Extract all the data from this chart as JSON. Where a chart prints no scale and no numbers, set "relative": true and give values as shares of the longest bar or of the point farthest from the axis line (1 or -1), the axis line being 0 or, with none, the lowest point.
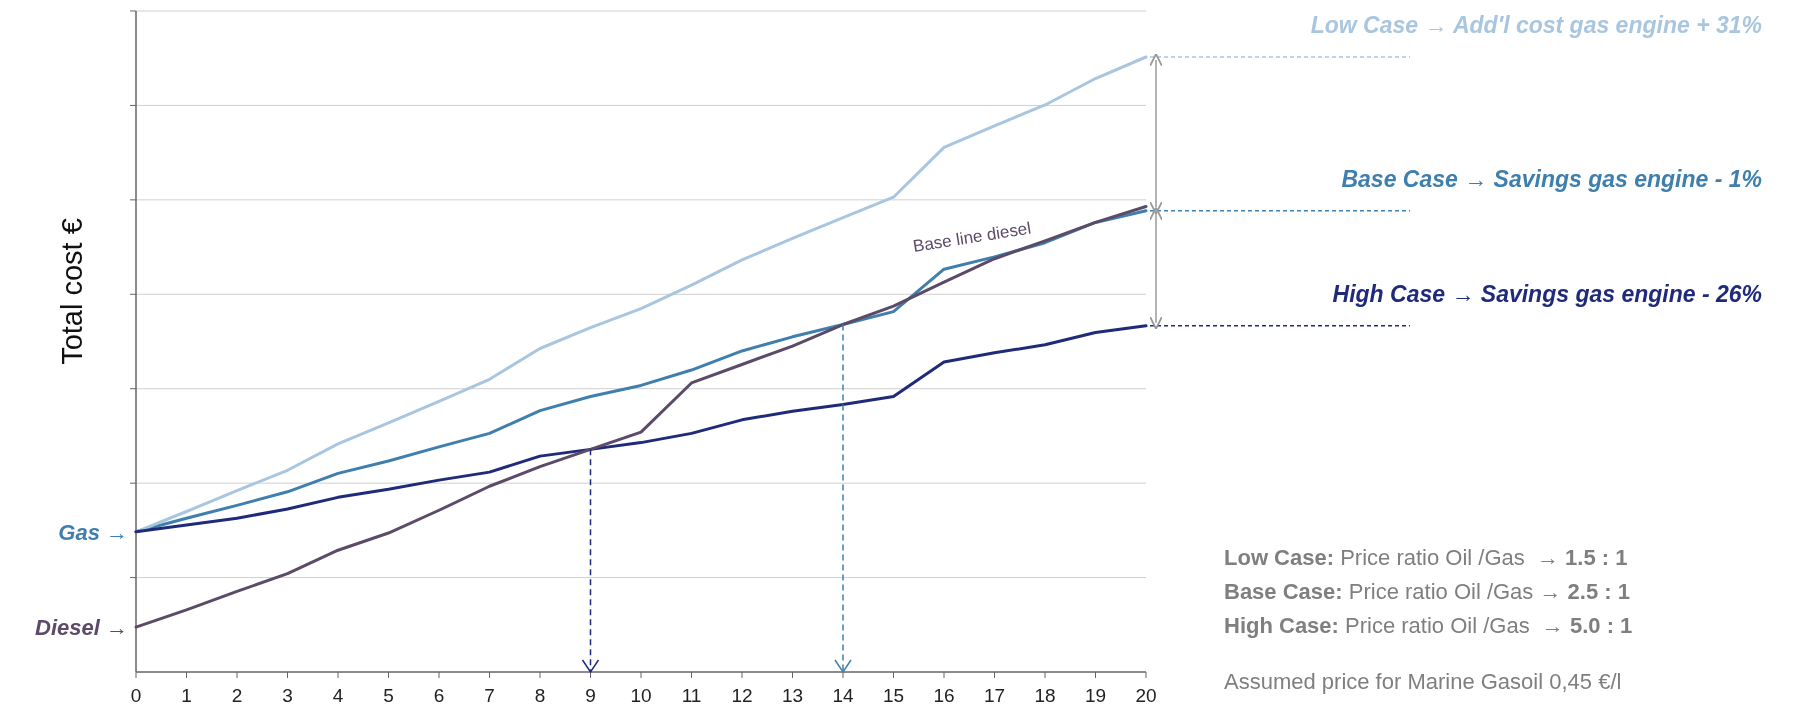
{
  "chart_data": {
    "type": "line",
    "relative": true,
    "ylabel": "Total cost €",
    "xlim": [
      0,
      20
    ],
    "xticks": [
      0,
      1,
      2,
      3,
      4,
      5,
      6,
      7,
      8,
      9,
      10,
      11,
      12,
      13,
      14,
      15,
      16,
      17,
      18,
      19,
      20
    ],
    "grid": "y",
    "line_style": "solid",
    "x": [
      0,
      1,
      2,
      3,
      4,
      5,
      6,
      7,
      8,
      9,
      10,
      11,
      12,
      13,
      14,
      15,
      16,
      17,
      18,
      19,
      20
    ],
    "series": [
      {
        "name": "Base Case → Savings gas engine - 1%",
        "color": "#3f7fae",
        "values": [
          0.228,
          0.25,
          0.271,
          0.293,
          0.323,
          0.343,
          0.366,
          0.388,
          0.425,
          0.448,
          0.466,
          0.491,
          0.522,
          0.545,
          0.565,
          0.586,
          0.655,
          0.675,
          0.698,
          0.731,
          0.75
        ]
      },
      {
        "name": "Low Case → Add'l cost gas engine + 31%",
        "color": "#a9c6e0",
        "values": [
          0.228,
          0.261,
          0.295,
          0.328,
          0.371,
          0.405,
          0.44,
          0.476,
          0.526,
          0.56,
          0.591,
          0.629,
          0.67,
          0.705,
          0.739,
          0.772,
          0.853,
          0.888,
          0.922,
          0.965,
          1
        ]
      },
      {
        "name": "High Case → Savings gas engine - 26%",
        "color": "#1f2a7a",
        "values": [
          0.228,
          0.239,
          0.25,
          0.265,
          0.284,
          0.297,
          0.312,
          0.325,
          0.351,
          0.362,
          0.373,
          0.388,
          0.41,
          0.424,
          0.435,
          0.448,
          0.504,
          0.519,
          0.532,
          0.552,
          0.563
        ]
      },
      {
        "name": "Base line diesel",
        "color": "#5b4a68",
        "values": [
          0.073,
          0.101,
          0.131,
          0.16,
          0.198,
          0.226,
          0.263,
          0.302,
          0.334,
          0.362,
          0.39,
          0.47,
          0.5,
          0.53,
          0.565,
          0.595,
          0.634,
          0.672,
          0.701,
          0.731,
          0.757
        ]
      }
    ],
    "ref_lines": [
      {
        "axis": "x",
        "value": 9,
        "color": "#1f2a7a",
        "line_style": "dashed"
      },
      {
        "axis": "x",
        "value": 14,
        "color": "#3f7fae",
        "line_style": "dashed"
      }
    ],
    "annotations": [
      "Gas →",
      "Diesel →",
      "Low Case: Price ratio Oil /Gas  → 1.5 : 1",
      "Base Case: Price ratio Oil /Gas → 2.5 : 1",
      "High Case: Price ratio Oil /Gas  → 5.0 : 1",
      "Assumed price for Marine Gasoil 0,45 €/l"
    ]
  }
}
